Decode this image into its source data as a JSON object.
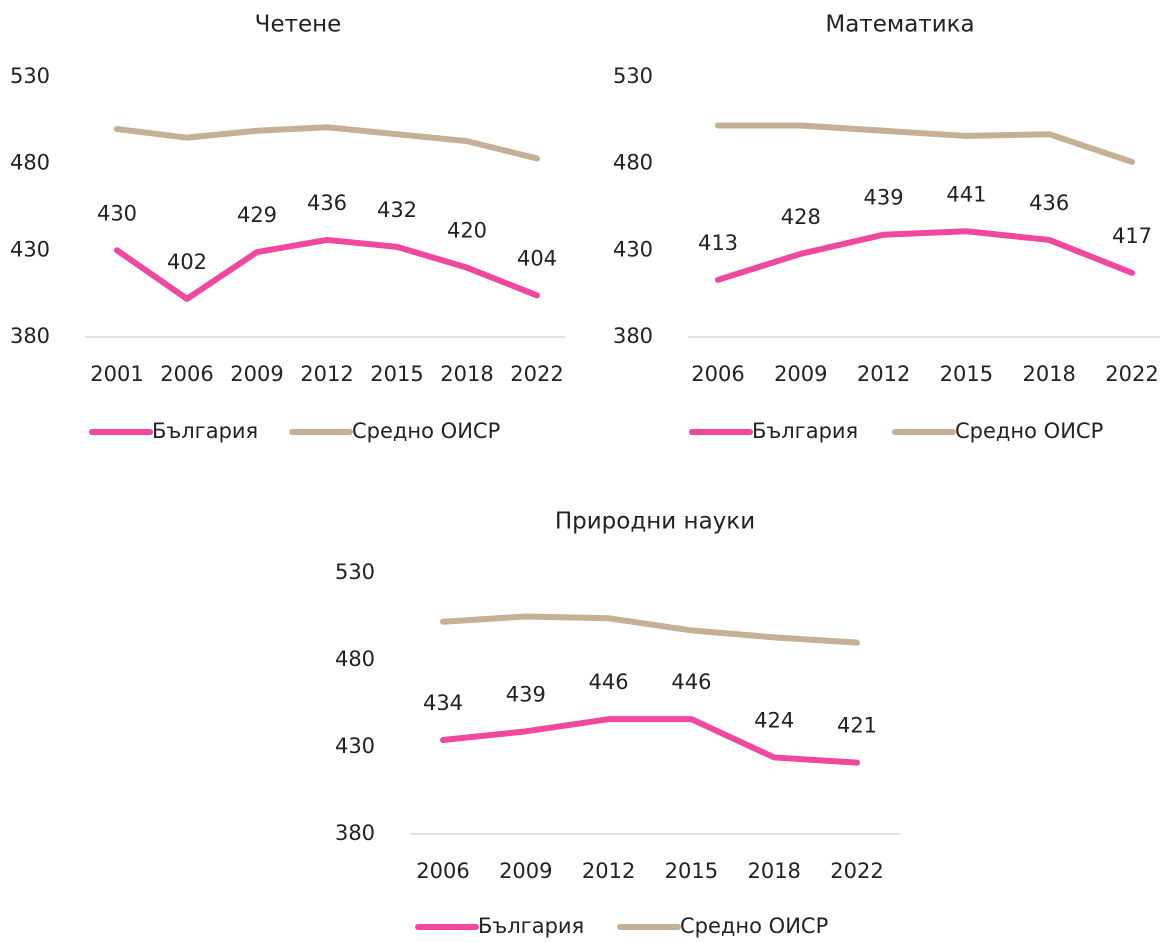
{
  "chart_data": [
    {
      "type": "line",
      "title": "Четене",
      "x": [
        "2001",
        "2006",
        "2009",
        "2012",
        "2015",
        "2018",
        "2022"
      ],
      "series": [
        {
          "name": "България",
          "color": "#f0489e",
          "values": [
            430,
            402,
            429,
            436,
            432,
            420,
            404
          ],
          "value_labels": true
        },
        {
          "name": "Средно ОИСР",
          "color": "#c4b096",
          "values": [
            500,
            495,
            499,
            501,
            497,
            493,
            483
          ]
        }
      ],
      "ylim": [
        380,
        530
      ],
      "yticks": [
        380,
        430,
        480,
        530
      ],
      "legend": "bottom"
    },
    {
      "type": "line",
      "title": "Математика",
      "x": [
        "2006",
        "2009",
        "2012",
        "2015",
        "2018",
        "2022"
      ],
      "series": [
        {
          "name": "България",
          "color": "#f0489e",
          "values": [
            413,
            428,
            439,
            441,
            436,
            417
          ],
          "value_labels": true
        },
        {
          "name": "Средно ОИСР",
          "color": "#c4b096",
          "values": [
            502,
            502,
            499,
            496,
            497,
            481
          ]
        }
      ],
      "ylim": [
        380,
        530
      ],
      "yticks": [
        380,
        430,
        480,
        530
      ],
      "legend": "bottom"
    },
    {
      "type": "line",
      "title": "Природни науки",
      "x": [
        "2006",
        "2009",
        "2012",
        "2015",
        "2018",
        "2022"
      ],
      "series": [
        {
          "name": "България",
          "color": "#f0489e",
          "values": [
            434,
            439,
            446,
            446,
            424,
            421
          ],
          "value_labels": true
        },
        {
          "name": "Средно ОИСР",
          "color": "#c4b096",
          "values": [
            502,
            505,
            504,
            497,
            493,
            490
          ]
        }
      ],
      "ylim": [
        380,
        530
      ],
      "yticks": [
        380,
        430,
        480,
        530
      ],
      "legend": "bottom"
    }
  ]
}
